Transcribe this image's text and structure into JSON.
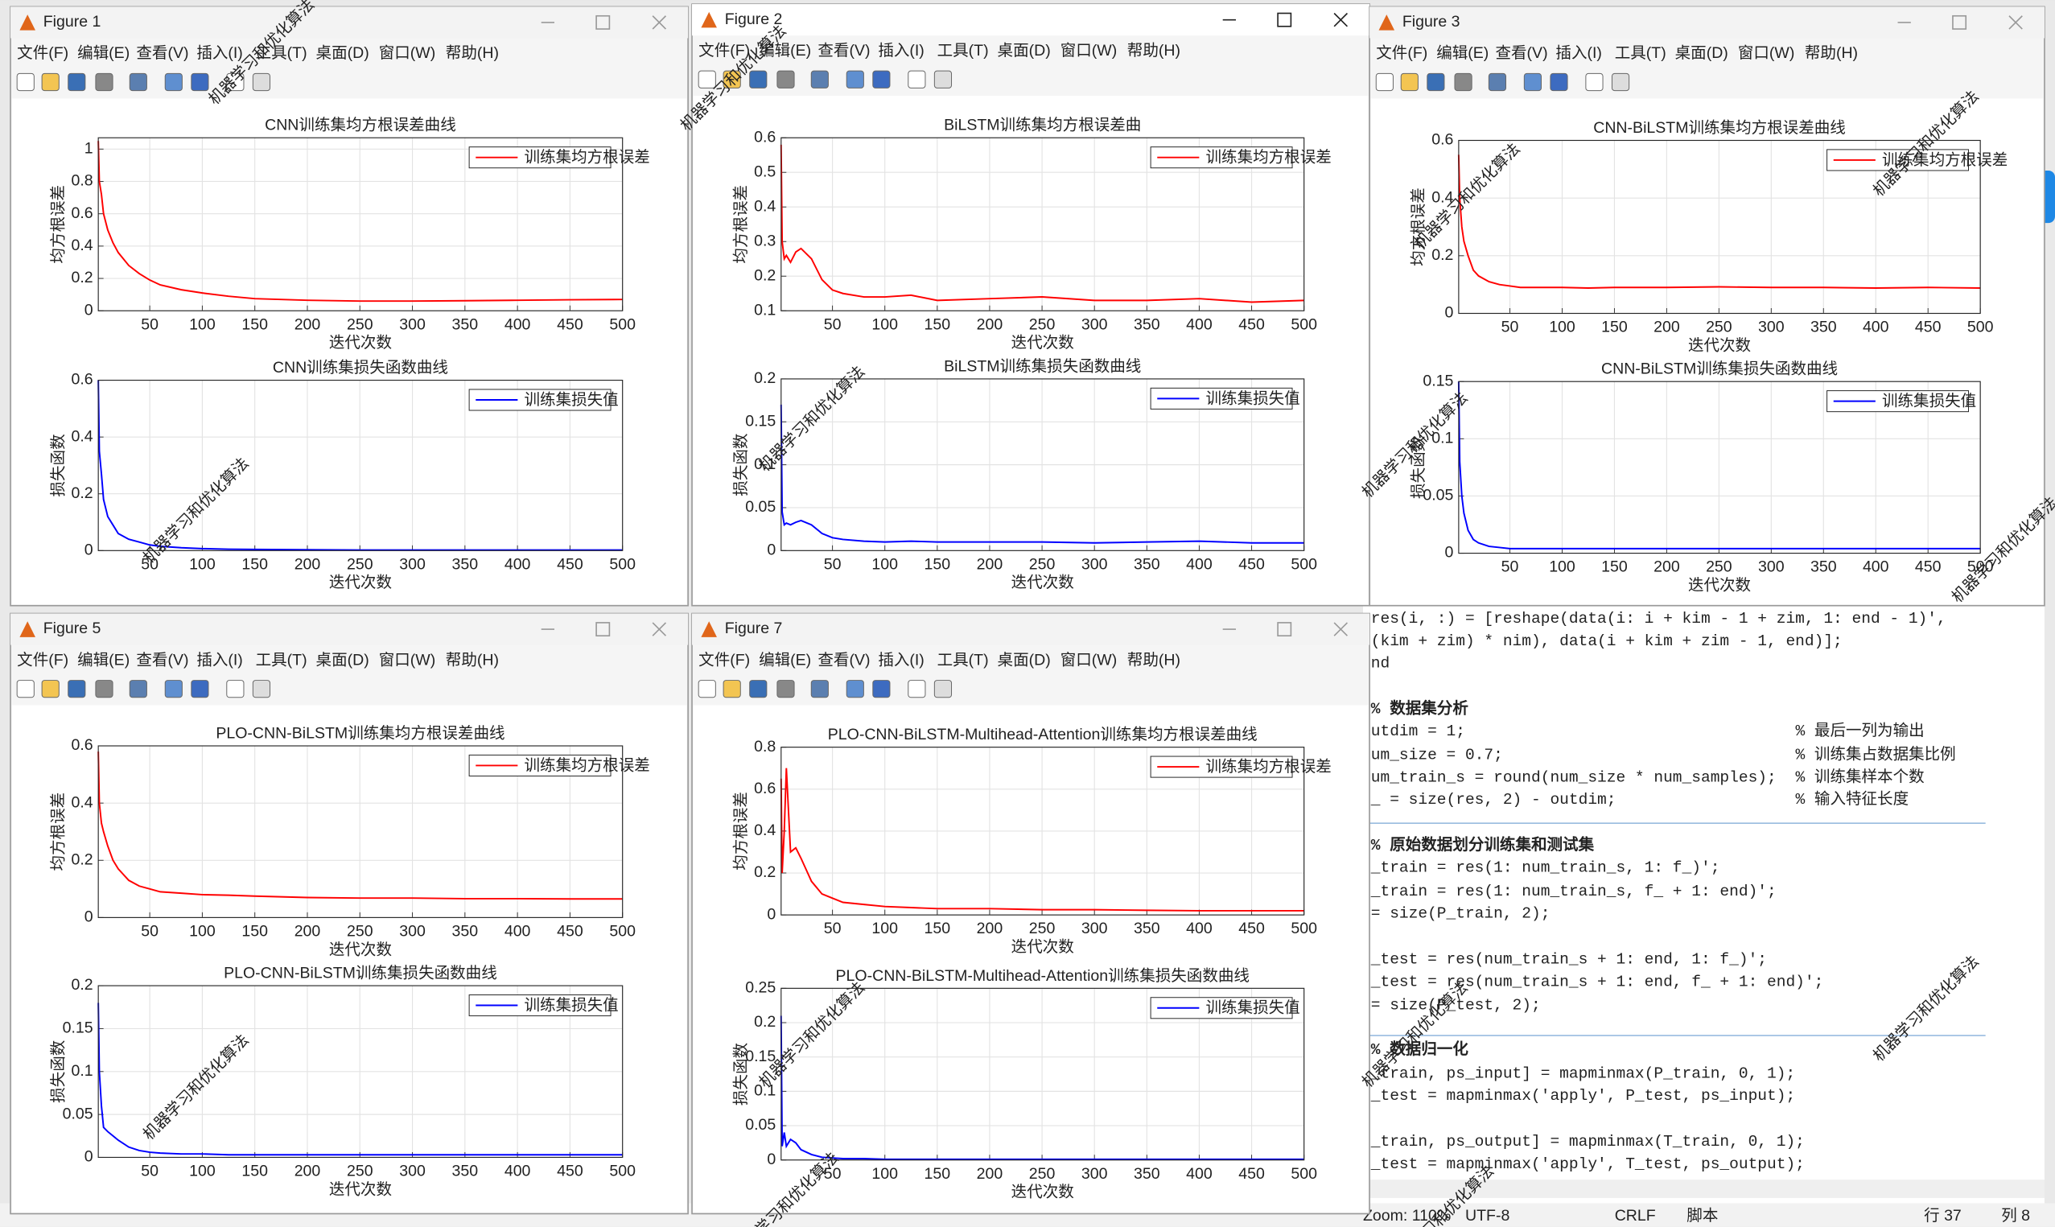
{
  "menu": [
    "文件(F)",
    "编辑(E)",
    "查看(V)",
    "插入(I)",
    "工具(T)",
    "桌面(D)",
    "窗口(W)",
    "帮助(H)"
  ],
  "watermark": "机器学习和优化算法",
  "windows": [
    {
      "title": "Figure 1",
      "active": false,
      "charts": [
        {
          "type": "line",
          "title": "CNN训练集均方根误差曲线",
          "xlabel": "迭代次数",
          "ylabel": "均方根误差",
          "grid": true,
          "legend": "upper right",
          "x": [
            1,
            2,
            4,
            6,
            10,
            15,
            20,
            30,
            40,
            50,
            60,
            80,
            100,
            125,
            150,
            200,
            250,
            300,
            350,
            400,
            450,
            500
          ],
          "xlim": [
            1,
            500
          ],
          "xticks": [
            50,
            100,
            150,
            200,
            250,
            300,
            350,
            400,
            450,
            500
          ],
          "ylim": [
            0,
            1.07
          ],
          "yticks": [
            0,
            0.2,
            0.4,
            0.6,
            0.8,
            1
          ],
          "series": [
            {
              "name": "训练集均方根误差",
              "color": "#ff0000",
              "values": [
                1.05,
                0.8,
                0.72,
                0.6,
                0.5,
                0.42,
                0.36,
                0.28,
                0.23,
                0.19,
                0.16,
                0.13,
                0.11,
                0.09,
                0.075,
                0.065,
                0.06,
                0.06,
                0.062,
                0.065,
                0.068,
                0.07
              ]
            }
          ]
        },
        {
          "type": "line",
          "title": "CNN训练集损失函数曲线",
          "xlabel": "迭代次数",
          "ylabel": "损失函数",
          "grid": true,
          "legend": "upper right",
          "x": [
            1,
            2,
            4,
            6,
            10,
            15,
            20,
            30,
            40,
            50,
            60,
            80,
            100,
            125,
            150,
            200,
            250,
            300,
            350,
            400,
            450,
            500
          ],
          "xlim": [
            1,
            500
          ],
          "xticks": [
            50,
            100,
            150,
            200,
            250,
            300,
            350,
            400,
            450,
            500
          ],
          "ylim": [
            0,
            0.6
          ],
          "yticks": [
            0,
            0.2,
            0.4,
            0.6
          ],
          "series": [
            {
              "name": "训练集损失值",
              "color": "#0000ff",
              "values": [
                0.6,
                0.35,
                0.27,
                0.18,
                0.12,
                0.09,
                0.06,
                0.04,
                0.03,
                0.02,
                0.015,
                0.01,
                0.007,
                0.005,
                0.004,
                0.003,
                0.002,
                0.002,
                0.002,
                0.002,
                0.002,
                0.002
              ]
            }
          ]
        }
      ]
    },
    {
      "title": "Figure 2",
      "active": true,
      "charts": [
        {
          "type": "line",
          "title": "BiLSTM训练集均方根误差曲",
          "xlabel": "迭代次数",
          "ylabel": "均方根误差",
          "grid": true,
          "legend": "upper right",
          "x": [
            1,
            2,
            4,
            6,
            10,
            15,
            20,
            30,
            40,
            50,
            60,
            80,
            100,
            125,
            150,
            200,
            250,
            300,
            350,
            400,
            450,
            500
          ],
          "xlim": [
            1,
            500
          ],
          "xticks": [
            50,
            100,
            150,
            200,
            250,
            300,
            350,
            400,
            450,
            500
          ],
          "ylim": [
            0.1,
            0.6
          ],
          "yticks": [
            0.1,
            0.2,
            0.3,
            0.4,
            0.5,
            0.6
          ],
          "series": [
            {
              "name": "训练集均方根误差",
              "color": "#ff0000",
              "values": [
                0.58,
                0.3,
                0.25,
                0.26,
                0.24,
                0.27,
                0.28,
                0.25,
                0.19,
                0.16,
                0.15,
                0.14,
                0.14,
                0.145,
                0.13,
                0.135,
                0.14,
                0.13,
                0.13,
                0.135,
                0.125,
                0.13
              ]
            }
          ]
        },
        {
          "type": "line",
          "title": "BiLSTM训练集损失函数曲线",
          "xlabel": "迭代次数",
          "ylabel": "损失函数",
          "grid": true,
          "legend": "upper right",
          "x": [
            1,
            2,
            4,
            6,
            10,
            15,
            20,
            30,
            40,
            50,
            60,
            80,
            100,
            125,
            150,
            200,
            250,
            300,
            350,
            400,
            450,
            500
          ],
          "xlim": [
            1,
            500
          ],
          "xticks": [
            50,
            100,
            150,
            200,
            250,
            300,
            350,
            400,
            450,
            500
          ],
          "ylim": [
            0,
            0.2
          ],
          "yticks": [
            0,
            0.05,
            0.1,
            0.15,
            0.2
          ],
          "series": [
            {
              "name": "训练集损失值",
              "color": "#0000ff",
              "values": [
                0.17,
                0.045,
                0.03,
                0.032,
                0.03,
                0.033,
                0.035,
                0.03,
                0.02,
                0.015,
                0.013,
                0.011,
                0.01,
                0.011,
                0.01,
                0.01,
                0.01,
                0.009,
                0.01,
                0.011,
                0.009,
                0.009
              ]
            }
          ]
        }
      ]
    },
    {
      "title": "Figure 3",
      "active": false,
      "charts": [
        {
          "type": "line",
          "title": "CNN-BiLSTM训练集均方根误差曲线",
          "xlabel": "迭代次数",
          "ylabel": "均方根误差",
          "grid": true,
          "legend": "upper right",
          "x": [
            1,
            2,
            4,
            6,
            10,
            15,
            20,
            30,
            40,
            50,
            60,
            80,
            100,
            125,
            150,
            200,
            250,
            300,
            350,
            400,
            450,
            500
          ],
          "xlim": [
            1,
            500
          ],
          "xticks": [
            50,
            100,
            150,
            200,
            250,
            300,
            350,
            400,
            450,
            500
          ],
          "ylim": [
            0,
            0.6
          ],
          "yticks": [
            0,
            0.2,
            0.4,
            0.6
          ],
          "series": [
            {
              "name": "训练集均方根误差",
              "color": "#ff0000",
              "values": [
                0.55,
                0.4,
                0.3,
                0.25,
                0.2,
                0.15,
                0.13,
                0.11,
                0.1,
                0.095,
                0.09,
                0.09,
                0.09,
                0.088,
                0.09,
                0.09,
                0.092,
                0.09,
                0.09,
                0.088,
                0.09,
                0.088
              ]
            }
          ]
        },
        {
          "type": "line",
          "title": "CNN-BiLSTM训练集损失函数曲线",
          "xlabel": "迭代次数",
          "ylabel": "损失函数",
          "grid": true,
          "legend": "upper right",
          "x": [
            1,
            2,
            4,
            6,
            10,
            15,
            20,
            30,
            40,
            50,
            60,
            80,
            100,
            125,
            150,
            200,
            250,
            300,
            350,
            400,
            450,
            500
          ],
          "xlim": [
            1,
            500
          ],
          "xticks": [
            50,
            100,
            150,
            200,
            250,
            300,
            350,
            400,
            450,
            500
          ],
          "ylim": [
            0,
            0.15
          ],
          "yticks": [
            0,
            0.05,
            0.1,
            0.15
          ],
          "series": [
            {
              "name": "训练集损失值",
              "color": "#0000ff",
              "values": [
                0.15,
                0.08,
                0.05,
                0.035,
                0.02,
                0.012,
                0.009,
                0.006,
                0.005,
                0.004,
                0.004,
                0.004,
                0.004,
                0.004,
                0.004,
                0.004,
                0.004,
                0.004,
                0.004,
                0.004,
                0.004,
                0.004
              ]
            }
          ]
        }
      ]
    },
    {
      "title": "Figure 5",
      "active": false,
      "charts": [
        {
          "type": "line",
          "title": "PLO-CNN-BiLSTM训练集均方根误差曲线",
          "xlabel": "迭代次数",
          "ylabel": "均方根误差",
          "grid": true,
          "legend": "upper right",
          "x": [
            1,
            2,
            4,
            6,
            10,
            15,
            20,
            30,
            40,
            50,
            60,
            80,
            100,
            125,
            150,
            200,
            250,
            300,
            350,
            400,
            450,
            500
          ],
          "xlim": [
            1,
            500
          ],
          "xticks": [
            50,
            100,
            150,
            200,
            250,
            300,
            350,
            400,
            450,
            500
          ],
          "ylim": [
            0,
            0.6
          ],
          "yticks": [
            0,
            0.2,
            0.4,
            0.6
          ],
          "series": [
            {
              "name": "训练集均方根误差",
              "color": "#ff0000",
              "values": [
                0.58,
                0.4,
                0.33,
                0.3,
                0.25,
                0.2,
                0.17,
                0.13,
                0.11,
                0.1,
                0.09,
                0.085,
                0.08,
                0.078,
                0.075,
                0.07,
                0.068,
                0.068,
                0.066,
                0.066,
                0.065,
                0.065
              ]
            }
          ]
        },
        {
          "type": "line",
          "title": "PLO-CNN-BiLSTM训练集损失函数曲线",
          "xlabel": "迭代次数",
          "ylabel": "损失函数",
          "grid": true,
          "legend": "upper right",
          "x": [
            1,
            2,
            4,
            6,
            10,
            15,
            20,
            30,
            40,
            50,
            60,
            80,
            100,
            125,
            150,
            200,
            250,
            300,
            350,
            400,
            450,
            500
          ],
          "xlim": [
            1,
            500
          ],
          "xticks": [
            50,
            100,
            150,
            200,
            250,
            300,
            350,
            400,
            450,
            500
          ],
          "ylim": [
            0,
            0.2
          ],
          "yticks": [
            0,
            0.05,
            0.1,
            0.15,
            0.2
          ],
          "series": [
            {
              "name": "训练集损失值",
              "color": "#0000ff",
              "values": [
                0.18,
                0.1,
                0.06,
                0.035,
                0.03,
                0.025,
                0.02,
                0.012,
                0.008,
                0.006,
                0.005,
                0.004,
                0.004,
                0.003,
                0.003,
                0.003,
                0.003,
                0.003,
                0.003,
                0.003,
                0.003,
                0.003
              ]
            }
          ]
        }
      ]
    },
    {
      "title": "Figure 7",
      "active": false,
      "charts": [
        {
          "type": "line",
          "title": "PLO-CNN-BiLSTM-Multihead-Attention训练集均方根误差曲线",
          "xlabel": "迭代次数",
          "ylabel": "均方根误差",
          "grid": true,
          "legend": "upper right",
          "x": [
            1,
            2,
            4,
            6,
            10,
            15,
            20,
            30,
            40,
            50,
            60,
            80,
            100,
            125,
            150,
            200,
            250,
            300,
            350,
            400,
            450,
            500
          ],
          "xlim": [
            1,
            500
          ],
          "xticks": [
            50,
            100,
            150,
            200,
            250,
            300,
            350,
            400,
            450,
            500
          ],
          "ylim": [
            0,
            0.8
          ],
          "yticks": [
            0,
            0.2,
            0.4,
            0.6,
            0.8
          ],
          "series": [
            {
              "name": "训练集均方根误差",
              "color": "#ff0000",
              "values": [
                0.65,
                0.2,
                0.4,
                0.7,
                0.3,
                0.32,
                0.27,
                0.16,
                0.1,
                0.08,
                0.06,
                0.05,
                0.04,
                0.035,
                0.03,
                0.03,
                0.025,
                0.025,
                0.022,
                0.02,
                0.02,
                0.02
              ]
            }
          ]
        },
        {
          "type": "line",
          "title": "PLO-CNN-BiLSTM-Multihead-Attention训练集损失函数曲线",
          "xlabel": "迭代次数",
          "ylabel": "损失函数",
          "grid": true,
          "legend": "upper right",
          "x": [
            1,
            2,
            4,
            6,
            10,
            15,
            20,
            30,
            40,
            50,
            60,
            80,
            100,
            125,
            150,
            200,
            250,
            300,
            350,
            400,
            450,
            500
          ],
          "xlim": [
            1,
            500
          ],
          "xticks": [
            50,
            100,
            150,
            200,
            250,
            300,
            350,
            400,
            450,
            500
          ],
          "ylim": [
            0,
            0.25
          ],
          "yticks": [
            0,
            0.05,
            0.1,
            0.15,
            0.2,
            0.25
          ],
          "series": [
            {
              "name": "训练集损失值",
              "color": "#0000ff",
              "values": [
                0.21,
                0.02,
                0.04,
                0.02,
                0.03,
                0.025,
                0.015,
                0.008,
                0.004,
                0.003,
                0.002,
                0.002,
                0.001,
                0.001,
                0.001,
                0.001,
                0.001,
                0.001,
                0.001,
                0.001,
                0.001,
                0.001
              ]
            }
          ]
        }
      ]
    }
  ],
  "editor": {
    "lines": [
      {
        "code": "res(i, :) = [reshape(data(i: i + kim - 1 + zim, 1: end - 1)',"
      },
      {
        "code": "    (kim + zim) * nim), data(i + kim + zim - 1, end)];"
      },
      {
        "code": "nd"
      },
      {
        "code": "%  数据集分析"
      },
      {
        "code": "utdim = 1;",
        "comment": "% 最后一列为输出"
      },
      {
        "code": "um_size = 0.7;",
        "comment": "% 训练集占数据集比例"
      },
      {
        "code": "um_train_s = round(num_size * num_samples);",
        "comment": "% 训练集样本个数"
      },
      {
        "code": "_ = size(res, 2) - outdim;",
        "comment": "% 输入特征长度"
      },
      {
        "code": "% 原始数据划分训练集和测试集"
      },
      {
        "code": "_train = res(1: num_train_s, 1: f_)';"
      },
      {
        "code": "_train = res(1: num_train_s, f_ + 1: end)';"
      },
      {
        "code": "= size(P_train, 2);"
      },
      {
        "code": "_test = res(num_train_s + 1: end, 1: f_)';"
      },
      {
        "code": "_test = res(num_train_s + 1: end, f_ + 1: end)';"
      },
      {
        "code": "= size(P_test, 2);"
      },
      {
        "code": "%  数据归一化"
      },
      {
        "code": "_train, ps_input] = mapminmax(P_train, 0, 1);"
      },
      {
        "code": "_test = mapminmax('apply', P_test, ps_input);"
      },
      {
        "code": "_train, ps_output] = mapminmax(T_train, 0, 1);"
      },
      {
        "code": "_test = mapminmax('apply', T_test, ps_output);"
      }
    ],
    "status": [
      "Zoom: 110%",
      "UTF-8",
      "CRLF",
      "脚本",
      "行 37",
      "列 8"
    ]
  }
}
